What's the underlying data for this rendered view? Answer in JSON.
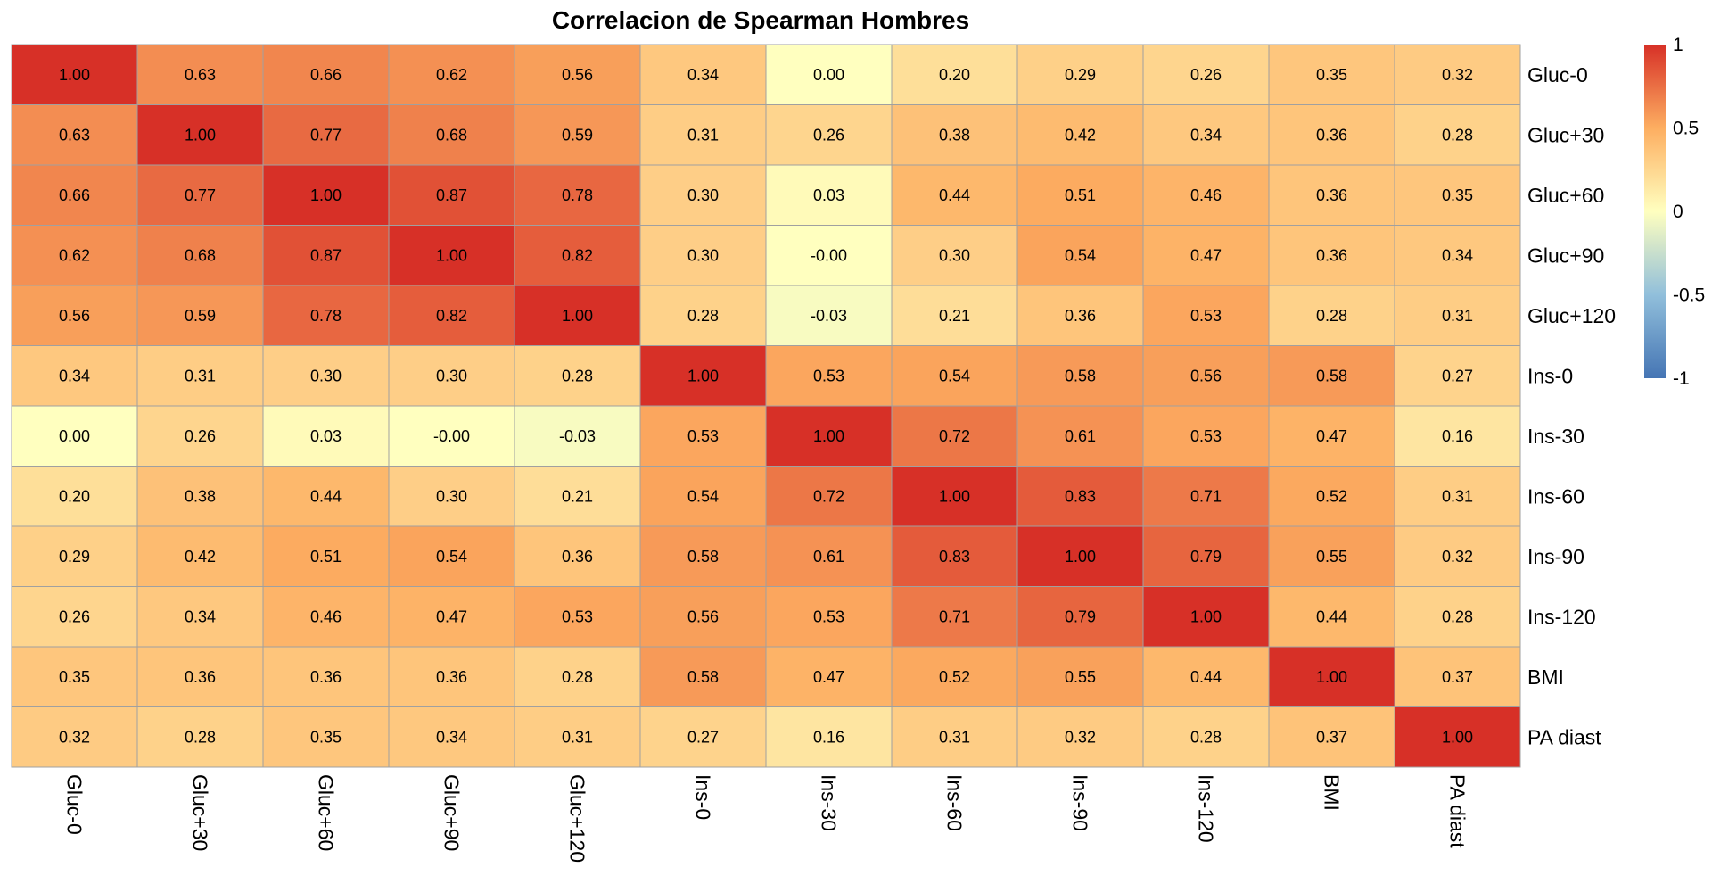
{
  "chart_data": {
    "type": "heatmap",
    "title": "Correlacion de Spearman Hombres",
    "rows": [
      "Gluc-0",
      "Gluc+30",
      "Gluc+60",
      "Gluc+90",
      "Gluc+120",
      "Ins-0",
      "Ins-30",
      "Ins-60",
      "Ins-90",
      "Ins-120",
      "BMI",
      "PA diast"
    ],
    "columns": [
      "Gluc-0",
      "Gluc+30",
      "Gluc+60",
      "Gluc+90",
      "Gluc+120",
      "Ins-0",
      "Ins-30",
      "Ins-60",
      "Ins-90",
      "Ins-120",
      "BMI",
      "PA diast"
    ],
    "values": [
      [
        1.0,
        0.63,
        0.66,
        0.62,
        0.56,
        0.34,
        0.0,
        0.2,
        0.29,
        0.26,
        0.35,
        0.32
      ],
      [
        0.63,
        1.0,
        0.77,
        0.68,
        0.59,
        0.31,
        0.26,
        0.38,
        0.42,
        0.34,
        0.36,
        0.28
      ],
      [
        0.66,
        0.77,
        1.0,
        0.87,
        0.78,
        0.3,
        0.03,
        0.44,
        0.51,
        0.46,
        0.36,
        0.35
      ],
      [
        0.62,
        0.68,
        0.87,
        1.0,
        0.82,
        0.3,
        -0.0,
        0.3,
        0.54,
        0.47,
        0.36,
        0.34
      ],
      [
        0.56,
        0.59,
        0.78,
        0.82,
        1.0,
        0.28,
        -0.03,
        0.21,
        0.36,
        0.53,
        0.28,
        0.31
      ],
      [
        0.34,
        0.31,
        0.3,
        0.3,
        0.28,
        1.0,
        0.53,
        0.54,
        0.58,
        0.56,
        0.58,
        0.27
      ],
      [
        0.0,
        0.26,
        0.03,
        -0.0,
        -0.03,
        0.53,
        1.0,
        0.72,
        0.61,
        0.53,
        0.47,
        0.16
      ],
      [
        0.2,
        0.38,
        0.44,
        0.3,
        0.21,
        0.54,
        0.72,
        1.0,
        0.83,
        0.71,
        0.52,
        0.31
      ],
      [
        0.29,
        0.42,
        0.51,
        0.54,
        0.36,
        0.58,
        0.61,
        0.83,
        1.0,
        0.79,
        0.55,
        0.32
      ],
      [
        0.26,
        0.34,
        0.46,
        0.47,
        0.53,
        0.56,
        0.53,
        0.71,
        0.79,
        1.0,
        0.44,
        0.28
      ],
      [
        0.35,
        0.36,
        0.36,
        0.36,
        0.28,
        0.58,
        0.47,
        0.52,
        0.55,
        0.44,
        1.0,
        0.37
      ],
      [
        0.32,
        0.28,
        0.35,
        0.34,
        0.31,
        0.27,
        0.16,
        0.31,
        0.32,
        0.28,
        0.37,
        1.0
      ]
    ],
    "value_labels": [
      [
        "1.00",
        "0.63",
        "0.66",
        "0.62",
        "0.56",
        "0.34",
        "0.00",
        "0.20",
        "0.29",
        "0.26",
        "0.35",
        "0.32"
      ],
      [
        "0.63",
        "1.00",
        "0.77",
        "0.68",
        "0.59",
        "0.31",
        "0.26",
        "0.38",
        "0.42",
        "0.34",
        "0.36",
        "0.28"
      ],
      [
        "0.66",
        "0.77",
        "1.00",
        "0.87",
        "0.78",
        "0.30",
        "0.03",
        "0.44",
        "0.51",
        "0.46",
        "0.36",
        "0.35"
      ],
      [
        "0.62",
        "0.68",
        "0.87",
        "1.00",
        "0.82",
        "0.30",
        "-0.00",
        "0.30",
        "0.54",
        "0.47",
        "0.36",
        "0.34"
      ],
      [
        "0.56",
        "0.59",
        "0.78",
        "0.82",
        "1.00",
        "0.28",
        "-0.03",
        "0.21",
        "0.36",
        "0.53",
        "0.28",
        "0.31"
      ],
      [
        "0.34",
        "0.31",
        "0.30",
        "0.30",
        "0.28",
        "1.00",
        "0.53",
        "0.54",
        "0.58",
        "0.56",
        "0.58",
        "0.27"
      ],
      [
        "0.00",
        "0.26",
        "0.03",
        "-0.00",
        "-0.03",
        "0.53",
        "1.00",
        "0.72",
        "0.61",
        "0.53",
        "0.47",
        "0.16"
      ],
      [
        "0.20",
        "0.38",
        "0.44",
        "0.30",
        "0.21",
        "0.54",
        "0.72",
        "1.00",
        "0.83",
        "0.71",
        "0.52",
        "0.31"
      ],
      [
        "0.29",
        "0.42",
        "0.51",
        "0.54",
        "0.36",
        "0.58",
        "0.61",
        "0.83",
        "1.00",
        "0.79",
        "0.55",
        "0.32"
      ],
      [
        "0.26",
        "0.34",
        "0.46",
        "0.47",
        "0.53",
        "0.56",
        "0.53",
        "0.71",
        "0.79",
        "1.00",
        "0.44",
        "0.28"
      ],
      [
        "0.35",
        "0.36",
        "0.36",
        "0.36",
        "0.28",
        "0.58",
        "0.47",
        "0.52",
        "0.55",
        "0.44",
        "1.00",
        "0.37"
      ],
      [
        "0.32",
        "0.28",
        "0.35",
        "0.34",
        "0.31",
        "0.27",
        "0.16",
        "0.31",
        "0.32",
        "0.28",
        "0.37",
        "1.00"
      ]
    ],
    "color_scale": {
      "min": -1,
      "max": 1,
      "palette": "RdYlBu (reversed)",
      "stops": [
        {
          "value": -1,
          "color": "#4575b4"
        },
        {
          "value": -0.5,
          "color": "#91bfdb"
        },
        {
          "value": 0,
          "color": "#ffffbf"
        },
        {
          "value": 0.5,
          "color": "#fdae61"
        },
        {
          "value": 1,
          "color": "#d73027"
        }
      ],
      "legend_ticks": [
        {
          "value": 1,
          "label": "1"
        },
        {
          "value": 0.5,
          "label": "0.5"
        },
        {
          "value": 0,
          "label": "0"
        },
        {
          "value": -0.5,
          "label": "-0.5"
        },
        {
          "value": -1,
          "label": "-1"
        }
      ]
    },
    "cell_border_color": "#a0a0a0",
    "legend_placement": "right-top"
  }
}
